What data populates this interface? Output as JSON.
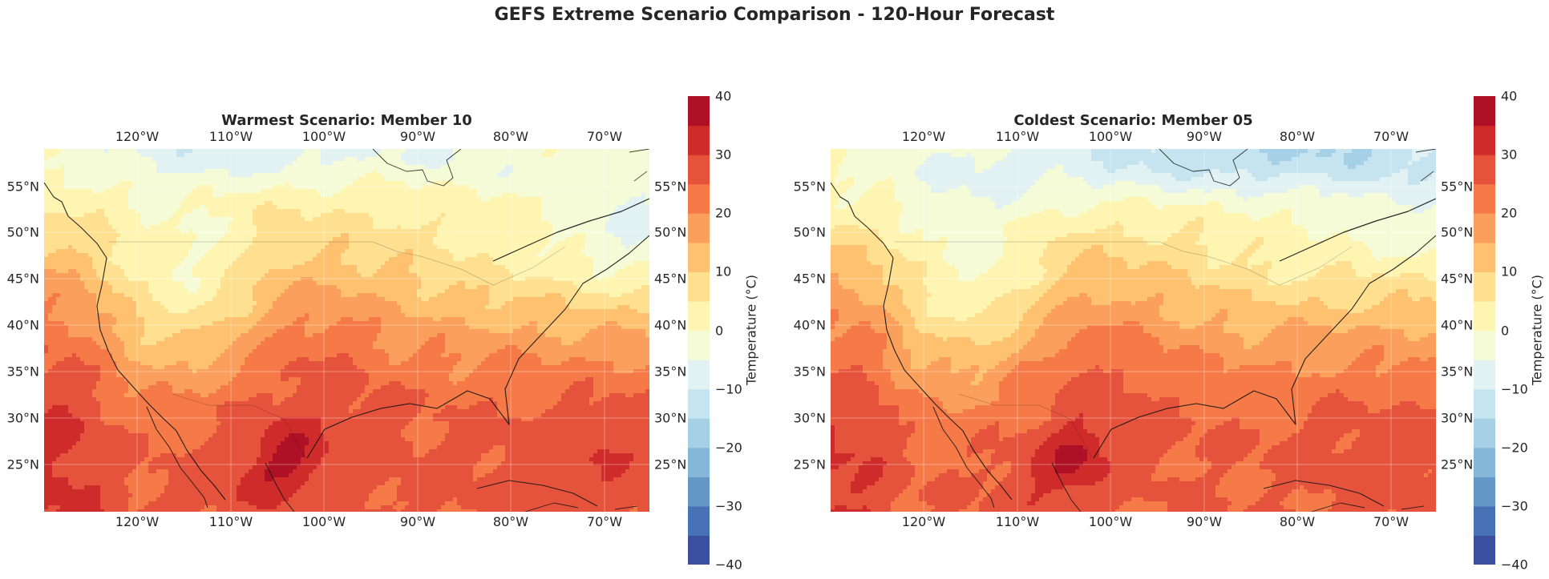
{
  "suptitle": "GEFS Extreme Scenario Comparison - 120-Hour Forecast",
  "panels": [
    {
      "title": "Warmest Scenario: Member 10",
      "scenario": "warm",
      "colorbar_label": "Temperature (°C)"
    },
    {
      "title": "Coldest Scenario: Member 05",
      "scenario": "cold",
      "colorbar_label": "Temperature (°C)"
    }
  ],
  "lon_ticks": [
    "120°W",
    "110°W",
    "100°W",
    "90°W",
    "80°W",
    "70°W"
  ],
  "lat_ticks": [
    "55°N",
    "50°N",
    "45°N",
    "40°N",
    "35°N",
    "30°N",
    "25°N"
  ],
  "colorbar_ticks": [
    "40",
    "30",
    "20",
    "10",
    "0",
    "−10",
    "−20",
    "−30",
    "−40"
  ],
  "colormap": {
    "name": "RdYlBu_r",
    "levels": [
      -40,
      -35,
      -30,
      -25,
      -20,
      -15,
      -10,
      -5,
      0,
      5,
      10,
      15,
      20,
      25,
      30,
      35,
      40
    ],
    "colors": [
      "#3a4fa0",
      "#4773b6",
      "#6497c6",
      "#84b7d8",
      "#a5d0e5",
      "#c5e4ef",
      "#e2f2f3",
      "#f6fbd7",
      "#fff5b2",
      "#ffe090",
      "#fec170",
      "#fb9f5c",
      "#f57a48",
      "#e5533d",
      "#cf2b2b",
      "#ae1126"
    ]
  },
  "map_region": {
    "lon_range": [
      -130,
      -65
    ],
    "lat_range": [
      20,
      59
    ]
  }
}
